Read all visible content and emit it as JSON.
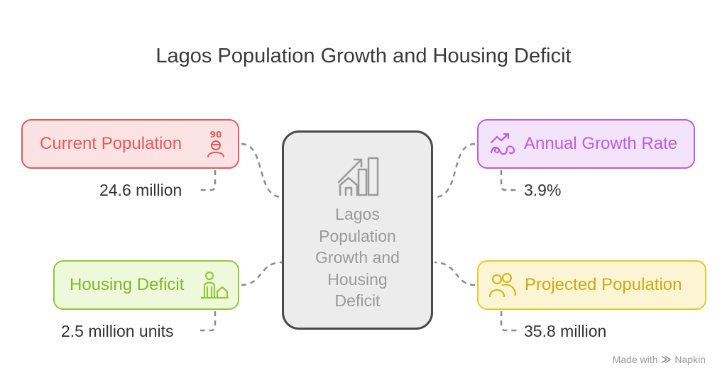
{
  "title": "Lagos Population Growth and Housing Deficit",
  "center": {
    "label": "Lagos\nPopulation\nGrowth and\nHousing\nDeficit",
    "icon": "chart-house-icon"
  },
  "items": [
    {
      "label": "Current Population",
      "value": "24.6 million",
      "icon": "person-age-icon",
      "color": "#e25a5a"
    },
    {
      "label": "Annual Growth Rate",
      "value": "3.9%",
      "icon": "growth-trend-icon",
      "color": "#b85ee0"
    },
    {
      "label": "Housing Deficit",
      "value": "2.5 million units",
      "icon": "person-house-icon",
      "color": "#94c73b"
    },
    {
      "label": "Projected Population",
      "value": "35.8 million",
      "icon": "people-group-icon",
      "color": "#e3c92c"
    }
  ],
  "footer": {
    "prefix": "Made with",
    "brand": "Napkin"
  }
}
